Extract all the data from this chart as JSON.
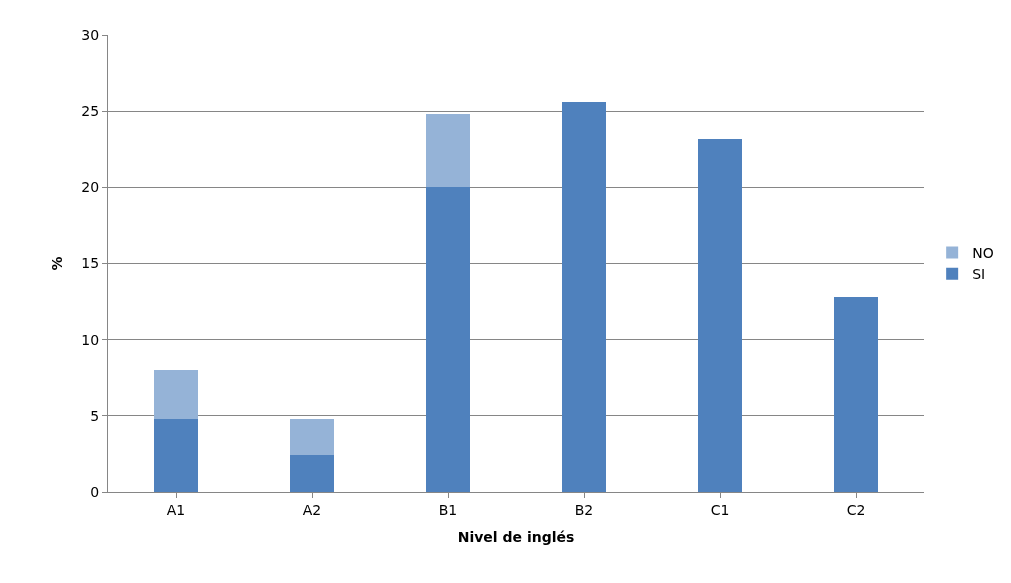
{
  "chart_data": {
    "type": "bar",
    "stacked": true,
    "xlabel": "Nivel de inglés",
    "ylabel": "%",
    "categories": [
      "A1",
      "A2",
      "B1",
      "B2",
      "C1",
      "C2"
    ],
    "series": [
      {
        "name": "SI",
        "color": "#4f81bd",
        "values": [
          4.8,
          2.4,
          20,
          25.6,
          23.2,
          12.8
        ]
      },
      {
        "name": "NO",
        "color": "#95b3d7",
        "values": [
          3.2,
          2.4,
          4.8,
          null,
          null,
          null
        ]
      }
    ],
    "ylim": [
      0,
      30
    ],
    "yticks": [
      0,
      5,
      10,
      15,
      20,
      25,
      30
    ],
    "grid": "y",
    "legend": "right"
  }
}
